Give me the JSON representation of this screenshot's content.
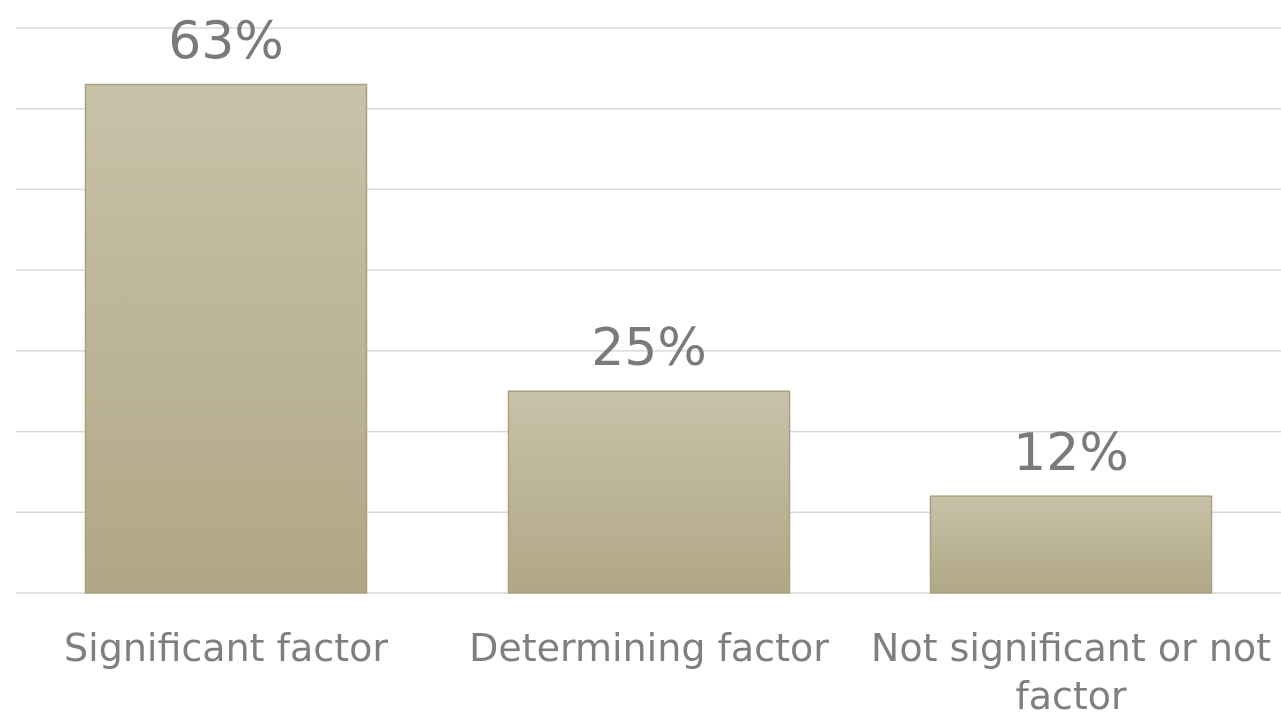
{
  "chart_data": {
    "type": "bar",
    "categories": [
      [
        "Significant factor"
      ],
      [
        "Determining factor"
      ],
      [
        "Not significant or not",
        "factor"
      ]
    ],
    "values": [
      63,
      25,
      12
    ],
    "data_labels": [
      "63%",
      "25%",
      "12%"
    ],
    "ylim": [
      0,
      70
    ],
    "gridlines": true,
    "legend": "none",
    "colors": {
      "bar_top": "#c8c2a9",
      "bar_bottom": "#b0a785",
      "bar_border": "#a8a07e",
      "grid": "#d9d9d9",
      "text": "#7f7f7f"
    }
  }
}
